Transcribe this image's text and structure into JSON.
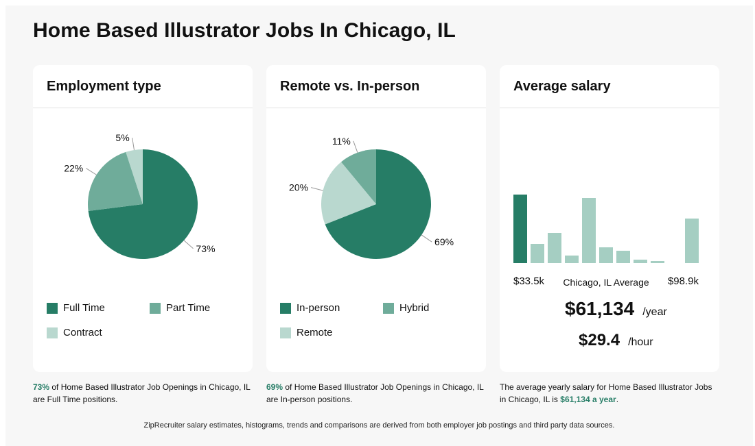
{
  "page": {
    "title": "Home Based Illustrator Jobs In Chicago, IL"
  },
  "colors": {
    "primary": "#267d66",
    "mid": "#6fac9a",
    "light": "#b9d8cf",
    "bar_light": "#a5cec2"
  },
  "employment": {
    "title": "Employment type",
    "legend": [
      "Full Time",
      "Part Time",
      "Contract"
    ],
    "caption": {
      "pct": "73%",
      "text": " of Home Based Illustrator Job Openings in Chicago, IL are Full Time positions."
    }
  },
  "remote": {
    "title": "Remote vs. In-person",
    "legend": [
      "In-person",
      "Hybrid",
      "Remote"
    ],
    "caption": {
      "pct": "69%",
      "text": " of Home Based Illustrator Job Openings in Chicago, IL are In-person positions."
    }
  },
  "salary": {
    "title": "Average salary",
    "min_label": "$33.5k",
    "max_label": "$98.9k",
    "center_label": "Chicago, IL Average",
    "yearly": "$61,134",
    "yearly_unit": "/year",
    "hourly": "$29.4",
    "hourly_unit": "/hour",
    "caption": {
      "text": "The average yearly salary for Home Based Illustrator Jobs in Chicago, IL is ",
      "value": "$61,134 a year",
      "end": "."
    }
  },
  "footer": "ZipRecruiter salary estimates, histograms, trends and comparisons are derived from both employer job postings and third party data sources.",
  "chart_data": [
    {
      "type": "pie",
      "title": "Employment type",
      "labels": [
        "Full Time",
        "Part Time",
        "Contract"
      ],
      "values": [
        73,
        22,
        5
      ],
      "value_labels": [
        "73%",
        "22%",
        "5%"
      ],
      "legend": "bottom"
    },
    {
      "type": "pie",
      "title": "Remote vs. In-person",
      "labels": [
        "In-person",
        "Remote",
        "Hybrid"
      ],
      "values": [
        69,
        20,
        11
      ],
      "value_labels": [
        "69%",
        "20%",
        "11%"
      ],
      "legend": "bottom"
    },
    {
      "type": "bar",
      "title": "Average salary",
      "values": [
        100,
        28,
        44,
        11,
        95,
        23,
        18,
        5,
        3,
        0,
        65
      ],
      "highlight_index": 0,
      "x_range_labels": [
        "$33.5k",
        "$98.9k"
      ],
      "ylim": [
        0,
        100
      ]
    }
  ]
}
